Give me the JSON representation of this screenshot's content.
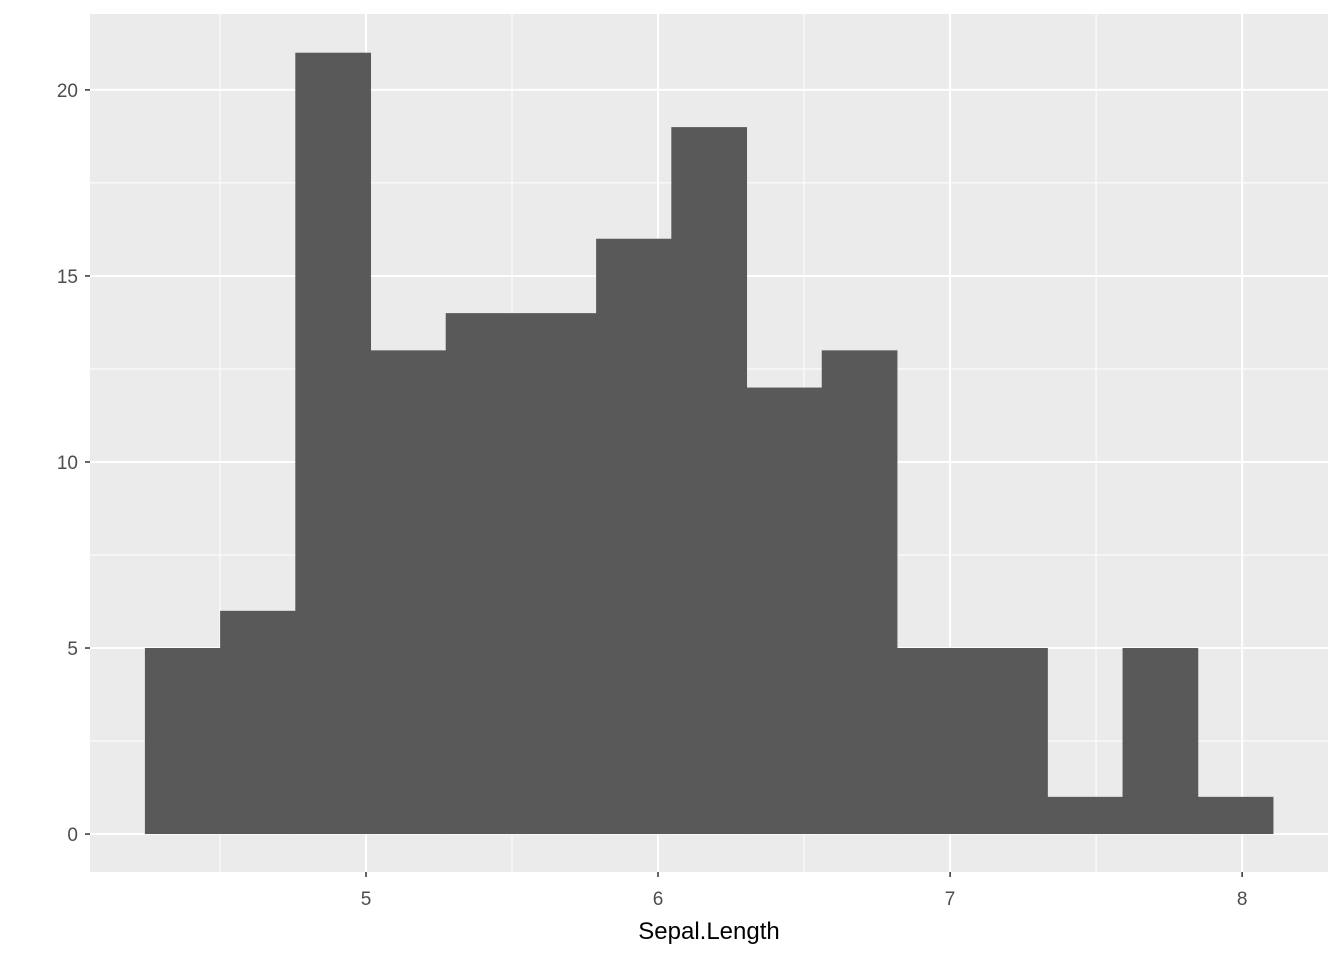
{
  "chart_data": {
    "type": "bar",
    "subtype": "histogram",
    "title": "",
    "xlabel": "Sepal.Length",
    "ylabel": "",
    "bin_start": 4.243,
    "bin_width": 0.2575,
    "values": [
      5,
      6,
      21,
      13,
      14,
      14,
      16,
      19,
      12,
      13,
      5,
      5,
      1,
      5,
      1
    ],
    "xlim": [
      4.055,
      8.294
    ],
    "ylim": [
      -1.02,
      22.04
    ],
    "x_ticks": [
      5,
      6,
      7,
      8
    ],
    "x_tick_labels": [
      "5",
      "6",
      "7",
      "8"
    ],
    "y_ticks": [
      0,
      5,
      10,
      15,
      20
    ],
    "y_tick_labels": [
      "0",
      "5",
      "10",
      "15",
      "20"
    ],
    "grid": true,
    "colors": {
      "panel": "#ebebeb",
      "bar": "#595959",
      "grid": "#ffffff"
    }
  }
}
